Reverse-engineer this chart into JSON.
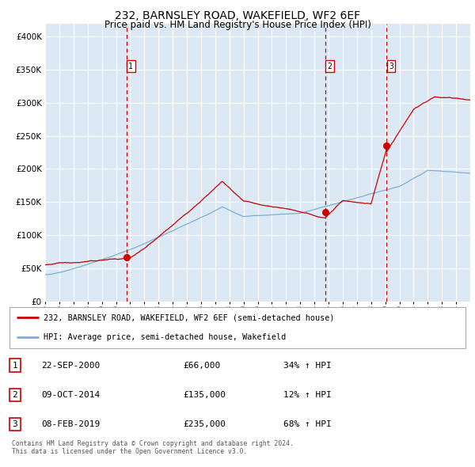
{
  "title1": "232, BARNSLEY ROAD, WAKEFIELD, WF2 6EF",
  "title2": "Price paid vs. HM Land Registry's House Price Index (HPI)",
  "background_color": "#dce9f5",
  "fig_bg_color": "#ffffff",
  "red_line_color": "#cc0000",
  "blue_line_color": "#7bafd4",
  "sale_marker_color": "#cc0000",
  "vline_color": "#cc0000",
  "grid_color": "#ffffff",
  "ylim": [
    0,
    420000
  ],
  "yticks": [
    0,
    50000,
    100000,
    150000,
    200000,
    250000,
    300000,
    350000,
    400000
  ],
  "ytick_labels": [
    "£0",
    "£50K",
    "£100K",
    "£150K",
    "£200K",
    "£250K",
    "£300K",
    "£350K",
    "£400K"
  ],
  "sales": [
    {
      "date_num": 2000.73,
      "price": 66000,
      "label": "1"
    },
    {
      "date_num": 2014.77,
      "price": 135000,
      "label": "2"
    },
    {
      "date_num": 2019.1,
      "price": 235000,
      "label": "3"
    }
  ],
  "legend_label_red": "232, BARNSLEY ROAD, WAKEFIELD, WF2 6EF (semi-detached house)",
  "legend_label_blue": "HPI: Average price, semi-detached house, Wakefield",
  "table_rows": [
    [
      "1",
      "22-SEP-2000",
      "£66,000",
      "34% ↑ HPI"
    ],
    [
      "2",
      "09-OCT-2014",
      "£135,000",
      "12% ↑ HPI"
    ],
    [
      "3",
      "08-FEB-2019",
      "£235,000",
      "68% ↑ HPI"
    ]
  ],
  "footer": "Contains HM Land Registry data © Crown copyright and database right 2024.\nThis data is licensed under the Open Government Licence v3.0.",
  "xstart": 1995.0,
  "xend": 2025.0
}
